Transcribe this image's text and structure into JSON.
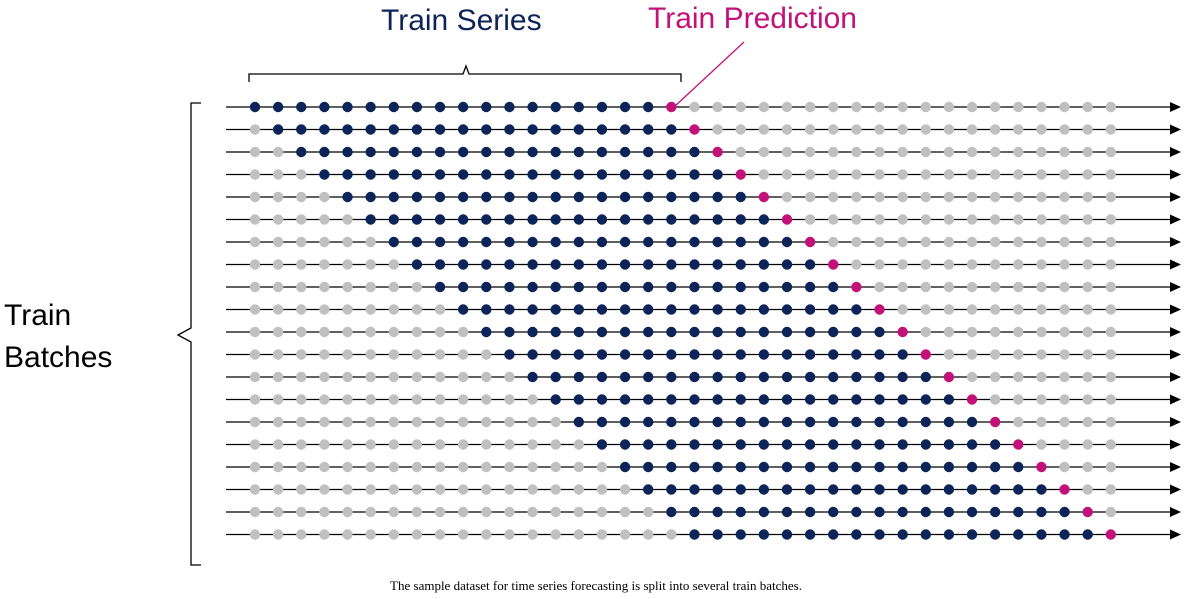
{
  "labels": {
    "train_series": "Train Series",
    "train_prediction": "Train Prediction",
    "train_batches_line1": "Train",
    "train_batches_line2": "Batches"
  },
  "caption": "The sample dataset for time series forecasting is split into several train batches.",
  "diagram": {
    "batch_count": 20,
    "points_per_row": 38,
    "series_length": 18,
    "colors": {
      "series": "#0d2458",
      "prediction": "#c2127a",
      "unused": "#c0c0c0",
      "axis": "#000000"
    }
  }
}
